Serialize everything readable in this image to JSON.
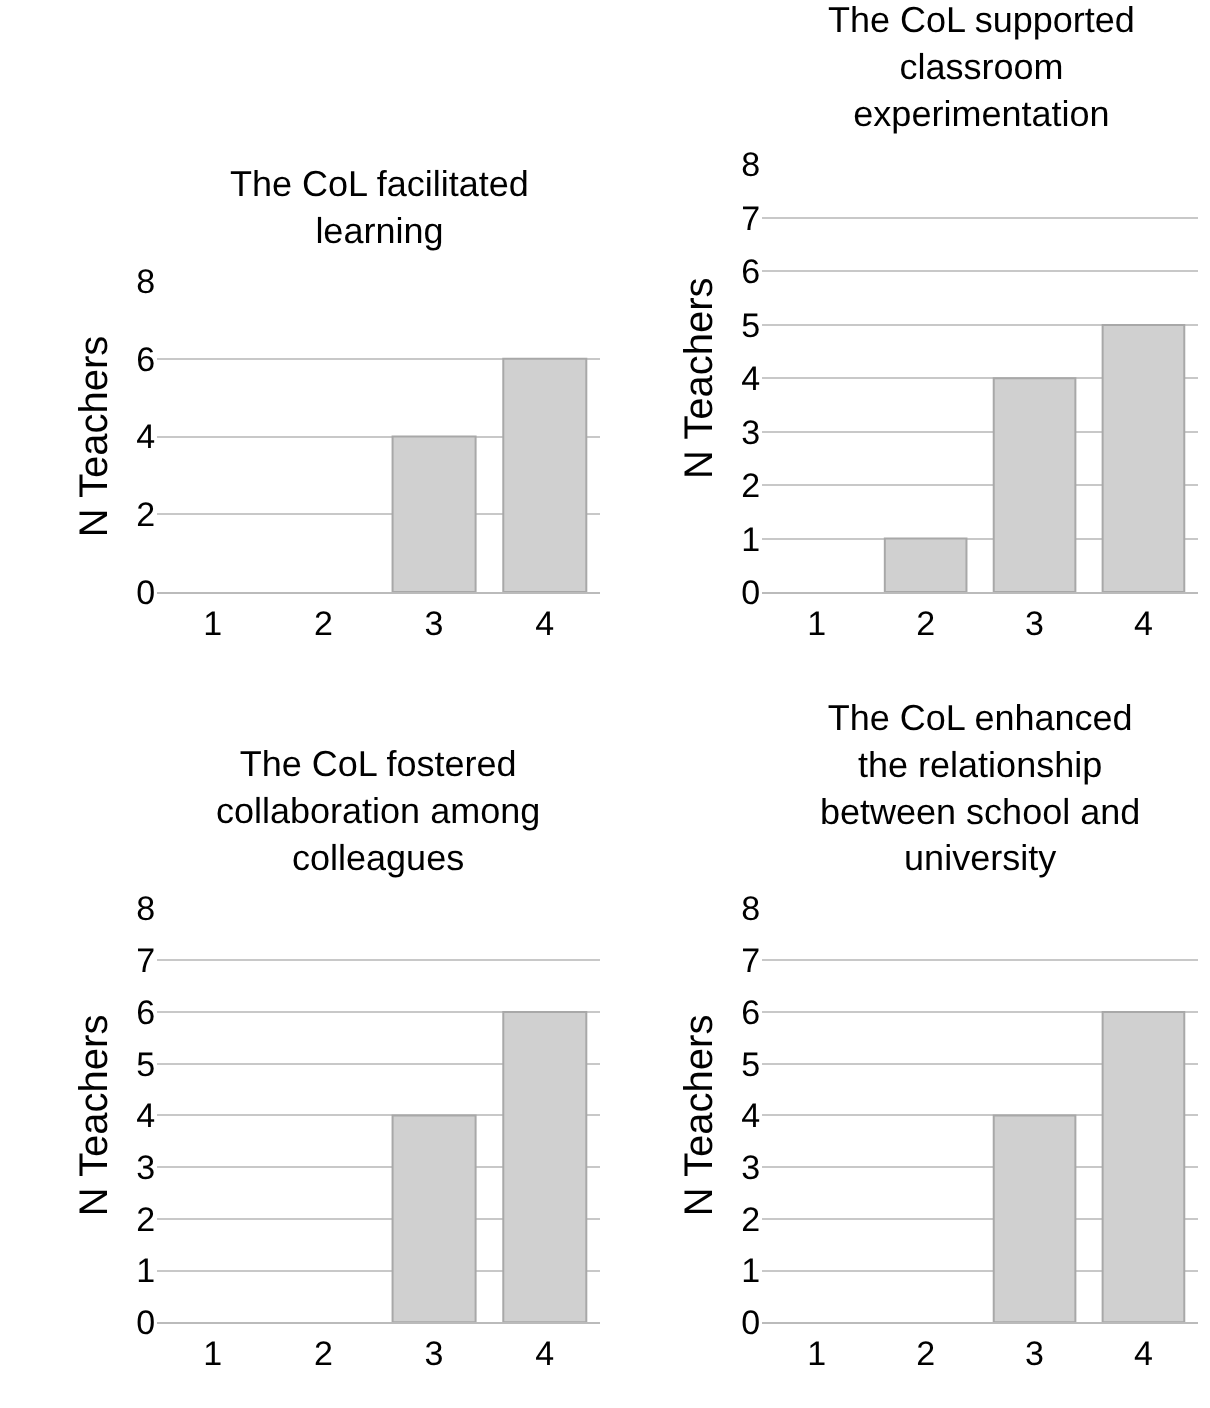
{
  "chart_data": [
    {
      "type": "bar",
      "title": "The CoL facilitated learning",
      "ylabel": "N Teachers",
      "categories": [
        "1",
        "2",
        "3",
        "4"
      ],
      "values": [
        0,
        0,
        4,
        6
      ],
      "color": "#d0d0d0",
      "ylim": [
        0,
        8
      ],
      "yticks": [
        0,
        2,
        4,
        6,
        8
      ],
      "grid": "y"
    },
    {
      "type": "bar",
      "title": "The CoL supported classroom experimentation",
      "ylabel": "N Teachers",
      "categories": [
        "1",
        "2",
        "3",
        "4"
      ],
      "values": [
        0,
        1,
        4,
        5
      ],
      "color": "#d0d0d0",
      "ylim": [
        0,
        8
      ],
      "yticks": [
        0,
        1,
        2,
        3,
        4,
        5,
        6,
        7,
        8
      ],
      "grid": "y"
    },
    {
      "type": "bar",
      "title": "The CoL fostered collaboration among colleagues",
      "ylabel": "N Teachers",
      "categories": [
        "1",
        "2",
        "3",
        "4"
      ],
      "values": [
        0,
        0,
        4,
        6
      ],
      "color": "#d0d0d0",
      "ylim": [
        0,
        8
      ],
      "yticks": [
        0,
        1,
        2,
        3,
        4,
        5,
        6,
        7,
        8
      ],
      "grid": "y"
    },
    {
      "type": "bar",
      "title": "The CoL enhanced the relationship between school and university",
      "ylabel": "N Teachers",
      "categories": [
        "1",
        "2",
        "3",
        "4"
      ],
      "values": [
        0,
        0,
        4,
        6
      ],
      "color": "#d0d0d0",
      "ylim": [
        0,
        8
      ],
      "yticks": [
        0,
        1,
        2,
        3,
        4,
        5,
        6,
        7,
        8
      ],
      "grid": "y"
    }
  ]
}
